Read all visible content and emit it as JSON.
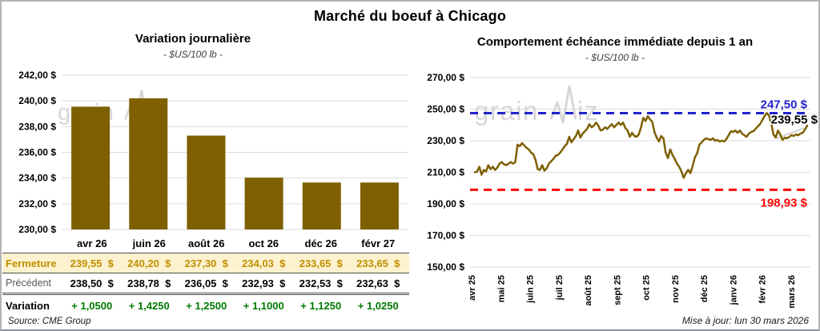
{
  "page": {
    "title": "Marché du boeuf à Chicago",
    "source": "Source: CME Group",
    "updated": "Mise à jour: lun 30 mars 2026",
    "watermark": "grainwiz"
  },
  "colors": {
    "bar": "#7e6000",
    "line": "#7e6000",
    "blue": "#2222cc",
    "red": "#ff0000",
    "green": "#007a00",
    "gold_text": "#bf8f00",
    "row_bg": "#fdf2cf",
    "grid": "#dcdcdc",
    "watermark": "#d7d7d7"
  },
  "chart_data": [
    {
      "type": "bar",
      "title": "Variation journalière",
      "subtitle": "- $US/100 lb -",
      "categories": [
        "avr 26",
        "juin 26",
        "août 26",
        "oct 26",
        "déc 26",
        "févr 27"
      ],
      "values": [
        239.55,
        240.2,
        237.3,
        234.03,
        233.65,
        233.65
      ],
      "xlabel": "",
      "ylabel": "$US/100 lb",
      "ylim": [
        230,
        242
      ],
      "ytick_step": 2,
      "ytick_labels": [
        "242,00 $",
        "240,00 $",
        "238,00 $",
        "236,00 $",
        "234,00 $",
        "232,00 $",
        "230,00 $"
      ],
      "grid": true,
      "legend": "none"
    },
    {
      "type": "line",
      "title": "Comportement échéance immédiate depuis 1 an",
      "subtitle": "- $US/100 lb -",
      "x_labels": [
        "avr 25",
        "mai 25",
        "juin 25",
        "juil 25",
        "août 25",
        "sept 25",
        "oct 25",
        "nov 25",
        "déc 25",
        "janv 26",
        "févr 26",
        "mars 26"
      ],
      "values": [
        210,
        210.5,
        213.5,
        208.5,
        211.5,
        210.5,
        214.5,
        212,
        213.5,
        211.5,
        213,
        215.5,
        216.5,
        215,
        214.5,
        215.5,
        216.5,
        215.5,
        216.5,
        227.5,
        226.5,
        228.5,
        227,
        225.5,
        224.5,
        222.5,
        221.5,
        218,
        212,
        211.5,
        214.5,
        211,
        212.5,
        215.5,
        217,
        218.5,
        220.5,
        221,
        222.5,
        224.5,
        226.5,
        228,
        232.5,
        229,
        231,
        233,
        236.5,
        232,
        234.5,
        236,
        237.5,
        240.5,
        238.5,
        239.5,
        241.5,
        239.5,
        236.5,
        237,
        238.5,
        237.5,
        239,
        240.5,
        238.5,
        240,
        241.5,
        240,
        241.5,
        238,
        236.5,
        232.5,
        235,
        233,
        232.5,
        234,
        238.5,
        244.5,
        242.5,
        245.5,
        243.5,
        242,
        235.5,
        232,
        229.5,
        233,
        231.5,
        222.5,
        219,
        224.5,
        221,
        218.5,
        215.5,
        213.5,
        210.5,
        206.5,
        209.5,
        211.5,
        209.5,
        214,
        219.5,
        222,
        227.5,
        229,
        230.5,
        231.5,
        231,
        230.5,
        231.5,
        230,
        230.5,
        229.5,
        230,
        229.5,
        231,
        233.5,
        236,
        235.5,
        236.5,
        235,
        236.5,
        234.5,
        233.5,
        232.5,
        234.5,
        235.5,
        236,
        237.5,
        239,
        240.5,
        243,
        245.5,
        247.5,
        246,
        241,
        234,
        232,
        236.5,
        234,
        230.5,
        232,
        231.5,
        232.5,
        233.5,
        233,
        234,
        233.5,
        234.5,
        235,
        237,
        239.55
      ],
      "xlabel": "",
      "ylabel": "$US/100 lb",
      "ylim": [
        150,
        270
      ],
      "ytick_step": 20,
      "ytick_labels": [
        "270,00 $",
        "250,00 $",
        "230,00 $",
        "210,00 $",
        "190,00 $",
        "170,00 $",
        "150,00 $"
      ],
      "ref_lines": [
        {
          "value": 247.5,
          "label": "247,50 $",
          "color": "blue"
        },
        {
          "value": 198.93,
          "label": "198,93 $",
          "color": "red"
        }
      ],
      "end_label": "239,55 $",
      "grid": true,
      "legend": "none"
    }
  ],
  "table": {
    "col_headers": [
      "avr 26",
      "juin 26",
      "août 26",
      "oct 26",
      "déc 26",
      "févr 27"
    ],
    "rows": [
      {
        "label": "Fermeture",
        "style": "close",
        "values": [
          "239,55  $",
          "240,20  $",
          "237,30  $",
          "234,03  $",
          "233,65  $",
          "233,65  $"
        ]
      },
      {
        "label": "Précédent",
        "style": "previous",
        "values": [
          "238,50  $",
          "238,78  $",
          "236,05  $",
          "232,93  $",
          "232,53  $",
          "232,63  $"
        ]
      },
      {
        "label": "Variation",
        "style": "variation",
        "values": [
          "+ 1,0500",
          "+ 1,4250",
          "+ 1,2500",
          "+ 1,1000",
          "+ 1,1250",
          "+ 1,0250"
        ]
      }
    ]
  }
}
